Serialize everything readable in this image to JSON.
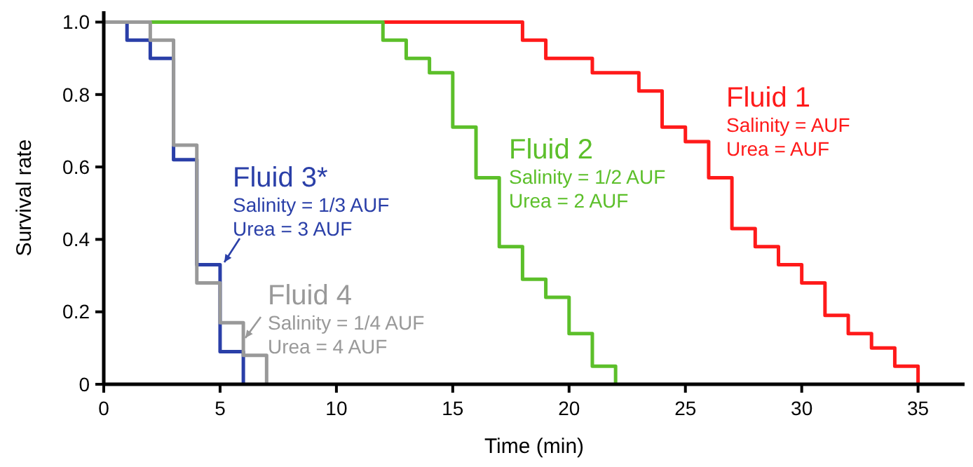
{
  "chart_data": {
    "type": "step",
    "xlabel": "Time (min)",
    "ylabel": "Survival rate",
    "xlim": [
      0,
      37
    ],
    "ylim": [
      0,
      1.03
    ],
    "xticks": [
      0,
      5,
      10,
      15,
      20,
      25,
      30,
      35
    ],
    "yticks": [
      0,
      0.2,
      0.4,
      0.6,
      0.8,
      {
        "value": 1,
        "label": "1.0"
      }
    ],
    "grid": false,
    "series": [
      {
        "name": "Fluid 1",
        "color": "#ff1a1a",
        "x": [
          0,
          18,
          19,
          21,
          23,
          24,
          25,
          26,
          27,
          28,
          29,
          30,
          31,
          32,
          33,
          34,
          35
        ],
        "values": [
          1,
          0.95,
          0.9,
          0.86,
          0.81,
          0.71,
          0.67,
          0.57,
          0.43,
          0.38,
          0.33,
          0.28,
          0.19,
          0.14,
          0.1,
          0.05,
          0
        ]
      },
      {
        "name": "Fluid 2",
        "color": "#5cbf2a",
        "x": [
          0,
          12,
          13,
          14,
          15,
          16,
          17,
          18,
          19,
          20,
          21,
          22
        ],
        "values": [
          1,
          0.95,
          0.9,
          0.86,
          0.71,
          0.57,
          0.38,
          0.29,
          0.24,
          0.14,
          0.05,
          0
        ]
      },
      {
        "name": "Fluid 3*",
        "color": "#2a3fa8",
        "x": [
          0,
          1,
          2,
          3,
          4,
          5,
          6
        ],
        "values": [
          1,
          0.95,
          0.9,
          0.62,
          0.33,
          0.09,
          0
        ]
      },
      {
        "name": "Fluid 4",
        "color": "#999999",
        "x": [
          0,
          2,
          3,
          4,
          5,
          6,
          7
        ],
        "values": [
          1,
          0.95,
          0.66,
          0.28,
          0.17,
          0.08,
          0
        ]
      }
    ],
    "annotations": [
      "Salinity = AUF",
      "Urea = AUF",
      "Salinity = 1/2 AUF",
      "Urea = 2 AUF",
      "Salinity = 1/3 AUF",
      "Urea = 3 AUF",
      "Salinity = 1/4 AUF",
      "Urea = 4 AUF"
    ]
  }
}
